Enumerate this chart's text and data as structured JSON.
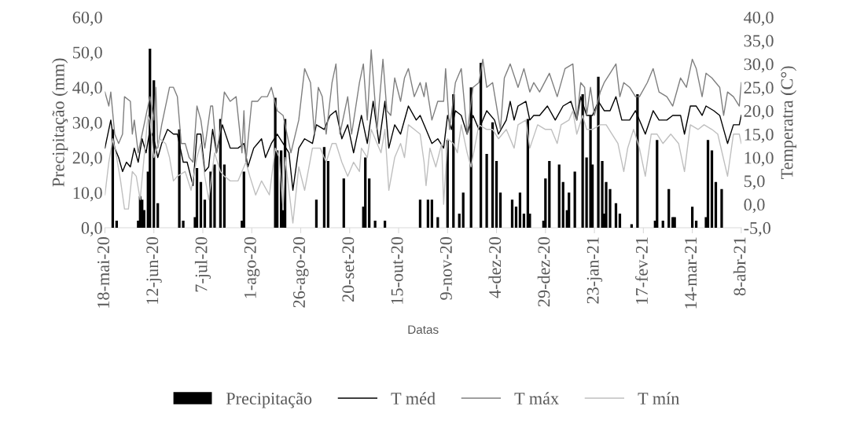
{
  "chart_data": {
    "type": "bar",
    "xlabel": "Datas",
    "ylabel": "Precipitação (mm)",
    "y2label": "Temperatra (C°)",
    "xlim": [
      "2020-05-18",
      "2021-04-08"
    ],
    "xticks": [
      {
        "value": "2020-05-18",
        "label": "18-mai-20"
      },
      {
        "value": "2020-06-12",
        "label": "12-jun-20"
      },
      {
        "value": "2020-07-07",
        "label": "7-jul-20"
      },
      {
        "value": "2020-08-01",
        "label": "1-ago-20"
      },
      {
        "value": "2020-08-26",
        "label": "26-ago-20"
      },
      {
        "value": "2020-09-20",
        "label": "20-set-20"
      },
      {
        "value": "2020-10-15",
        "label": "15-out-20"
      },
      {
        "value": "2020-11-09",
        "label": "9-nov-20"
      },
      {
        "value": "2020-12-04",
        "label": "4-dez-20"
      },
      {
        "value": "2020-12-29",
        "label": "29-dez-20"
      },
      {
        "value": "2021-01-23",
        "label": "23-jan-21"
      },
      {
        "value": "2021-02-17",
        "label": "17-fev-21"
      },
      {
        "value": "2021-03-14",
        "label": "14-mar-21"
      },
      {
        "value": "2021-04-08",
        "label": "8-abr-21"
      }
    ],
    "ylim": [
      0,
      60
    ],
    "yticks": [
      {
        "value": 0,
        "label": "0,0"
      },
      {
        "value": 10,
        "label": "10,0"
      },
      {
        "value": 20,
        "label": "20,0"
      },
      {
        "value": 30,
        "label": "30,0"
      },
      {
        "value": 40,
        "label": "40,0"
      },
      {
        "value": 50,
        "label": "50,0"
      },
      {
        "value": 60,
        "label": "60,0"
      }
    ],
    "y2lim": [
      -5,
      40
    ],
    "y2ticks": [
      {
        "value": -5,
        "label": "-5,0"
      },
      {
        "value": 0,
        "label": "0,0"
      },
      {
        "value": 5,
        "label": "5,0"
      },
      {
        "value": 10,
        "label": "10,0"
      },
      {
        "value": 15,
        "label": "15,0"
      },
      {
        "value": 20,
        "label": "20,0"
      },
      {
        "value": 25,
        "label": "25,0"
      },
      {
        "value": 30,
        "label": "30,0"
      },
      {
        "value": 35,
        "label": "35,0"
      },
      {
        "value": 40,
        "label": "40,0"
      }
    ],
    "legend": "bottom",
    "grid": false,
    "series": [
      {
        "name": "Precipitação",
        "color": "#000000",
        "x": [
          "2020-05-22",
          "2020-05-24",
          "2020-06-04",
          "2020-06-05",
          "2020-06-06",
          "2020-06-07",
          "2020-06-09",
          "2020-06-10",
          "2020-06-12",
          "2020-06-14",
          "2020-06-25",
          "2020-06-27",
          "2020-07-03",
          "2020-07-04",
          "2020-07-06",
          "2020-07-08",
          "2020-07-11",
          "2020-07-13",
          "2020-07-16",
          "2020-07-18",
          "2020-07-27",
          "2020-07-28",
          "2020-08-13",
          "2020-08-14",
          "2020-08-16",
          "2020-08-17",
          "2020-08-18",
          "2020-09-03",
          "2020-09-07",
          "2020-09-09",
          "2020-09-17",
          "2020-09-27",
          "2020-09-28",
          "2020-09-30",
          "2020-10-03",
          "2020-10-08",
          "2020-10-26",
          "2020-10-30",
          "2020-11-01",
          "2020-11-04",
          "2020-11-09",
          "2020-11-12",
          "2020-11-15",
          "2020-11-17",
          "2020-11-21",
          "2020-11-26",
          "2020-11-29",
          "2020-12-02",
          "2020-12-04",
          "2020-12-06",
          "2020-12-12",
          "2020-12-14",
          "2020-12-16",
          "2020-12-18",
          "2020-12-20",
          "2020-12-21",
          "2020-12-28",
          "2020-12-29",
          "2020-12-31",
          "2021-01-05",
          "2021-01-07",
          "2021-01-09",
          "2021-01-10",
          "2021-01-13",
          "2021-01-17",
          "2021-01-19",
          "2021-01-21",
          "2021-01-22",
          "2021-01-25",
          "2021-01-27",
          "2021-01-28",
          "2021-01-29",
          "2021-01-31",
          "2021-02-03",
          "2021-02-05",
          "2021-02-11",
          "2021-02-14",
          "2021-02-23",
          "2021-02-24",
          "2021-02-27",
          "2021-03-02",
          "2021-03-04",
          "2021-03-05",
          "2021-03-14",
          "2021-03-16",
          "2021-03-21",
          "2021-03-22",
          "2021-03-24",
          "2021-03-26",
          "2021-03-29"
        ],
        "values": [
          28,
          2,
          2,
          9,
          8,
          5,
          16,
          51,
          42,
          7,
          28,
          2,
          3,
          17,
          13,
          8,
          16,
          18,
          31,
          18,
          2,
          16,
          37,
          22,
          22,
          5,
          31,
          8,
          23,
          19,
          14,
          6,
          20,
          14,
          2,
          2,
          8,
          8,
          8,
          3,
          25,
          38,
          4,
          10,
          40,
          47,
          21,
          30,
          19,
          10,
          8,
          6,
          10,
          4,
          31,
          4,
          2,
          14,
          19,
          18,
          13,
          5,
          10,
          16,
          38,
          20,
          32,
          18,
          43,
          19,
          4,
          13,
          11,
          7,
          4,
          1,
          38,
          2,
          25,
          2,
          11,
          3,
          3,
          6,
          2,
          3,
          25,
          22,
          13,
          11
        ]
      },
      {
        "name": "T méd",
        "type": "line",
        "axis": "y2",
        "color": "#000000",
        "x": [
          "2020-05-18",
          "2020-05-21",
          "2020-05-23",
          "2020-05-25",
          "2020-05-27",
          "2020-05-29",
          "2020-05-31",
          "2020-06-02",
          "2020-06-04",
          "2020-06-06",
          "2020-06-08",
          "2020-06-10",
          "2020-06-12",
          "2020-06-14",
          "2020-06-16",
          "2020-06-19",
          "2020-06-22",
          "2020-06-24",
          "2020-06-27",
          "2020-06-29",
          "2020-07-02",
          "2020-07-04",
          "2020-07-06",
          "2020-07-08",
          "2020-07-10",
          "2020-07-12",
          "2020-07-14",
          "2020-07-17",
          "2020-07-21",
          "2020-07-25",
          "2020-07-28",
          "2020-07-30",
          "2020-08-02",
          "2020-08-04",
          "2020-08-06",
          "2020-08-08",
          "2020-08-11",
          "2020-08-14",
          "2020-08-17",
          "2020-08-20",
          "2020-08-22",
          "2020-08-25",
          "2020-08-28",
          "2020-09-01",
          "2020-09-03",
          "2020-09-07",
          "2020-09-10",
          "2020-09-13",
          "2020-09-16",
          "2020-09-19",
          "2020-09-22",
          "2020-09-26",
          "2020-09-29",
          "2020-10-02",
          "2020-10-05",
          "2020-10-08",
          "2020-10-10",
          "2020-10-13",
          "2020-10-16",
          "2020-10-20",
          "2020-10-24",
          "2020-10-26",
          "2020-10-29",
          "2020-11-01",
          "2020-11-04",
          "2020-11-07",
          "2020-11-09",
          "2020-11-11",
          "2020-11-13",
          "2020-11-16",
          "2020-11-19",
          "2020-11-22",
          "2020-11-25",
          "2020-11-29",
          "2020-12-03",
          "2020-12-05",
          "2020-12-09",
          "2020-12-11",
          "2020-12-13",
          "2020-12-15",
          "2020-12-19",
          "2020-12-21",
          "2020-12-23",
          "2020-12-26",
          "2020-12-30",
          "2021-01-03",
          "2021-01-07",
          "2021-01-11",
          "2021-01-14",
          "2021-01-16",
          "2021-01-19",
          "2021-01-22",
          "2021-01-25",
          "2021-01-28",
          "2021-01-31",
          "2021-02-03",
          "2021-02-06",
          "2021-02-10",
          "2021-02-13",
          "2021-02-18",
          "2021-02-22",
          "2021-02-25",
          "2021-03-01",
          "2021-03-04",
          "2021-03-08",
          "2021-03-10",
          "2021-03-13",
          "2021-03-16",
          "2021-03-19",
          "2021-03-21",
          "2021-03-25",
          "2021-03-28",
          "2021-04-01",
          "2021-04-04",
          "2021-04-07",
          "2021-04-08"
        ],
        "values": [
          12,
          18,
          12,
          10,
          7,
          9,
          8,
          12,
          9,
          14,
          11,
          16,
          14,
          10,
          13,
          16,
          15,
          15,
          9,
          9,
          4,
          15,
          15,
          7,
          8,
          16,
          11,
          17,
          12,
          12,
          13,
          8,
          12,
          13,
          14,
          10,
          13,
          15,
          13,
          11,
          3,
          12,
          14,
          13,
          17,
          16,
          19,
          20,
          14,
          17,
          11,
          19,
          13,
          22,
          13,
          22,
          12,
          17,
          15,
          21,
          18,
          19,
          16,
          13,
          14,
          12,
          19,
          16,
          20,
          19,
          15,
          19,
          16,
          20,
          18,
          15,
          18,
          22,
          18,
          21,
          22,
          18,
          19,
          19,
          21,
          18,
          21,
          22,
          18,
          23,
          19,
          19,
          22,
          20,
          20,
          23,
          18,
          18,
          20,
          15,
          20,
          18,
          18,
          19,
          19,
          15,
          21,
          21,
          19,
          21,
          20,
          19,
          13,
          17,
          17,
          19
        ]
      },
      {
        "name": "T máx",
        "type": "line",
        "axis": "y2",
        "color": "#7f7f7f",
        "x": [
          "2020-05-18",
          "2020-05-20",
          "2020-05-21",
          "2020-05-23",
          "2020-05-25",
          "2020-05-27",
          "2020-05-28",
          "2020-05-31",
          "2020-06-01",
          "2020-06-02",
          "2020-06-04",
          "2020-06-06",
          "2020-06-08",
          "2020-06-10",
          "2020-06-12",
          "2020-06-13",
          "2020-06-14",
          "2020-06-16",
          "2020-06-20",
          "2020-06-22",
          "2020-06-24",
          "2020-06-26",
          "2020-06-28",
          "2020-06-30",
          "2020-07-02",
          "2020-07-04",
          "2020-07-06",
          "2020-07-08",
          "2020-07-11",
          "2020-07-12",
          "2020-07-14",
          "2020-07-16",
          "2020-07-18",
          "2020-07-21",
          "2020-07-24",
          "2020-07-27",
          "2020-07-28",
          "2020-07-29",
          "2020-08-01",
          "2020-08-04",
          "2020-08-06",
          "2020-08-09",
          "2020-08-11",
          "2020-08-14",
          "2020-08-17",
          "2020-08-21",
          "2020-08-25",
          "2020-08-28",
          "2020-08-31",
          "2020-09-02",
          "2020-09-04",
          "2020-09-06",
          "2020-09-08",
          "2020-09-11",
          "2020-09-13",
          "2020-09-15",
          "2020-09-19",
          "2020-09-21",
          "2020-09-25",
          "2020-09-27",
          "2020-09-29",
          "2020-10-01",
          "2020-10-04",
          "2020-10-07",
          "2020-10-09",
          "2020-10-11",
          "2020-10-13",
          "2020-10-16",
          "2020-10-18",
          "2020-10-20",
          "2020-10-23",
          "2020-10-26",
          "2020-10-28",
          "2020-10-29",
          "2020-11-01",
          "2020-11-04",
          "2020-11-07",
          "2020-11-08",
          "2020-11-10",
          "2020-11-13",
          "2020-11-16",
          "2020-11-19",
          "2020-11-22",
          "2020-11-25",
          "2020-11-27",
          "2020-11-29",
          "2020-12-02",
          "2020-12-06",
          "2020-12-08",
          "2020-12-11",
          "2020-12-15",
          "2020-12-18",
          "2020-12-21",
          "2020-12-23",
          "2020-12-26",
          "2020-12-31",
          "2021-01-04",
          "2021-01-08",
          "2021-01-12",
          "2021-01-14",
          "2021-01-16",
          "2021-01-18",
          "2021-01-19",
          "2021-01-21",
          "2021-01-23",
          "2021-01-26",
          "2021-01-28",
          "2021-01-31",
          "2021-02-03",
          "2021-02-05",
          "2021-02-07",
          "2021-02-10",
          "2021-02-13",
          "2021-02-15",
          "2021-02-19",
          "2021-02-22",
          "2021-02-25",
          "2021-03-01",
          "2021-03-04",
          "2021-03-08",
          "2021-03-11",
          "2021-03-14",
          "2021-03-16",
          "2021-03-19",
          "2021-03-21",
          "2021-03-24",
          "2021-03-28",
          "2021-03-30",
          "2021-04-01",
          "2021-04-04",
          "2021-04-07",
          "2021-04-08"
        ],
        "values": [
          24,
          21,
          24,
          15,
          13,
          15,
          23,
          22,
          15,
          18,
          11,
          15,
          19,
          23,
          18,
          25,
          12,
          17,
          25,
          25,
          23,
          13,
          13,
          10,
          9,
          21,
          18,
          12,
          21,
          21,
          11,
          16,
          24,
          22,
          23,
          11,
          20,
          9,
          22,
          22,
          23,
          23,
          25,
          20,
          19,
          11,
          18,
          29,
          26,
          15,
          25,
          23,
          15,
          26,
          30,
          15,
          23,
          15,
          26,
          30,
          18,
          33,
          16,
          31,
          20,
          19,
          27,
          22,
          27,
          29,
          23,
          26,
          23,
          26,
          18,
          22,
          22,
          29,
          16,
          26,
          29,
          15,
          25,
          26,
          31,
          25,
          26,
          16,
          27,
          30,
          25,
          29,
          24,
          26,
          24,
          28,
          23,
          29,
          30,
          18,
          26,
          25,
          19,
          25,
          19,
          24,
          26,
          28,
          30,
          23,
          26,
          25,
          23,
          23,
          26,
          29,
          24,
          23,
          21,
          27,
          25,
          31,
          29,
          23,
          28,
          27,
          25,
          19,
          24,
          23,
          21,
          26
        ]
      },
      {
        "name": "T mín",
        "type": "line",
        "axis": "y2",
        "color": "#bfbfbf",
        "x": [
          "2020-05-18",
          "2020-05-20",
          "2020-05-22",
          "2020-05-24",
          "2020-05-26",
          "2020-05-28",
          "2020-05-30",
          "2020-06-01",
          "2020-06-03",
          "2020-06-05",
          "2020-06-07",
          "2020-06-09",
          "2020-06-10",
          "2020-06-12",
          "2020-06-15",
          "2020-06-18",
          "2020-06-20",
          "2020-06-22",
          "2020-06-24",
          "2020-06-28",
          "2020-07-01",
          "2020-07-04",
          "2020-07-06",
          "2020-07-08",
          "2020-07-10",
          "2020-07-13",
          "2020-07-16",
          "2020-07-18",
          "2020-07-21",
          "2020-07-25",
          "2020-07-29",
          "2020-07-31",
          "2020-08-03",
          "2020-08-06",
          "2020-08-10",
          "2020-08-13",
          "2020-08-15",
          "2020-08-17",
          "2020-08-18",
          "2020-08-22",
          "2020-08-25",
          "2020-08-28",
          "2020-09-01",
          "2020-09-05",
          "2020-09-08",
          "2020-09-11",
          "2020-09-13",
          "2020-09-16",
          "2020-09-19",
          "2020-09-22",
          "2020-09-25",
          "2020-09-26",
          "2020-09-29",
          "2020-10-01",
          "2020-10-06",
          "2020-10-08",
          "2020-10-10",
          "2020-10-13",
          "2020-10-16",
          "2020-10-18",
          "2020-10-20",
          "2020-10-23",
          "2020-10-26",
          "2020-10-28",
          "2020-10-29",
          "2020-10-31",
          "2020-11-03",
          "2020-11-06",
          "2020-11-07",
          "2020-11-09",
          "2020-11-12",
          "2020-11-14",
          "2020-11-16",
          "2020-11-19",
          "2020-11-21",
          "2020-11-25",
          "2020-11-29",
          "2020-12-02",
          "2020-12-05",
          "2020-12-09",
          "2020-12-13",
          "2020-12-15",
          "2020-12-19",
          "2020-12-21",
          "2020-12-25",
          "2020-12-29",
          "2021-01-01",
          "2021-01-04",
          "2021-01-06",
          "2021-01-10",
          "2021-01-12",
          "2021-01-14",
          "2021-01-17",
          "2021-01-19",
          "2021-01-22",
          "2021-01-26",
          "2021-01-29",
          "2021-02-01",
          "2021-02-04",
          "2021-02-07",
          "2021-02-09",
          "2021-02-12",
          "2021-02-15",
          "2021-02-18",
          "2021-02-21",
          "2021-02-24",
          "2021-02-27",
          "2021-03-03",
          "2021-03-07",
          "2021-03-10",
          "2021-03-13",
          "2021-03-17",
          "2021-03-20",
          "2021-03-24",
          "2021-03-27",
          "2021-04-01",
          "2021-04-04",
          "2021-04-07",
          "2021-04-08"
        ],
        "values": [
          2,
          9,
          14,
          10,
          5,
          -1,
          -1,
          7,
          6,
          1,
          10,
          19,
          18,
          10,
          14,
          13,
          10,
          5,
          6,
          7,
          3,
          10,
          13,
          6,
          1,
          11,
          7,
          6,
          5,
          5,
          9,
          6,
          2,
          5,
          2,
          12,
          10,
          -1,
          10,
          -4,
          8,
          3,
          12,
          12,
          9,
          13,
          13,
          9,
          6,
          9,
          7,
          12,
          10,
          16,
          11,
          16,
          3,
          10,
          13,
          10,
          17,
          16,
          15,
          9,
          4,
          12,
          8,
          13,
          0,
          14,
          13,
          11,
          17,
          11,
          8,
          17,
          16,
          16,
          14,
          16,
          12,
          17,
          18,
          12,
          17,
          16,
          16,
          13,
          17,
          18,
          20,
          15,
          19,
          16,
          16,
          17,
          17,
          15,
          13,
          7,
          12,
          16,
          12,
          6,
          15,
          15,
          13,
          15,
          13,
          7,
          17,
          16,
          17,
          16,
          15,
          6,
          15,
          15,
          13
        ]
      }
    ]
  }
}
